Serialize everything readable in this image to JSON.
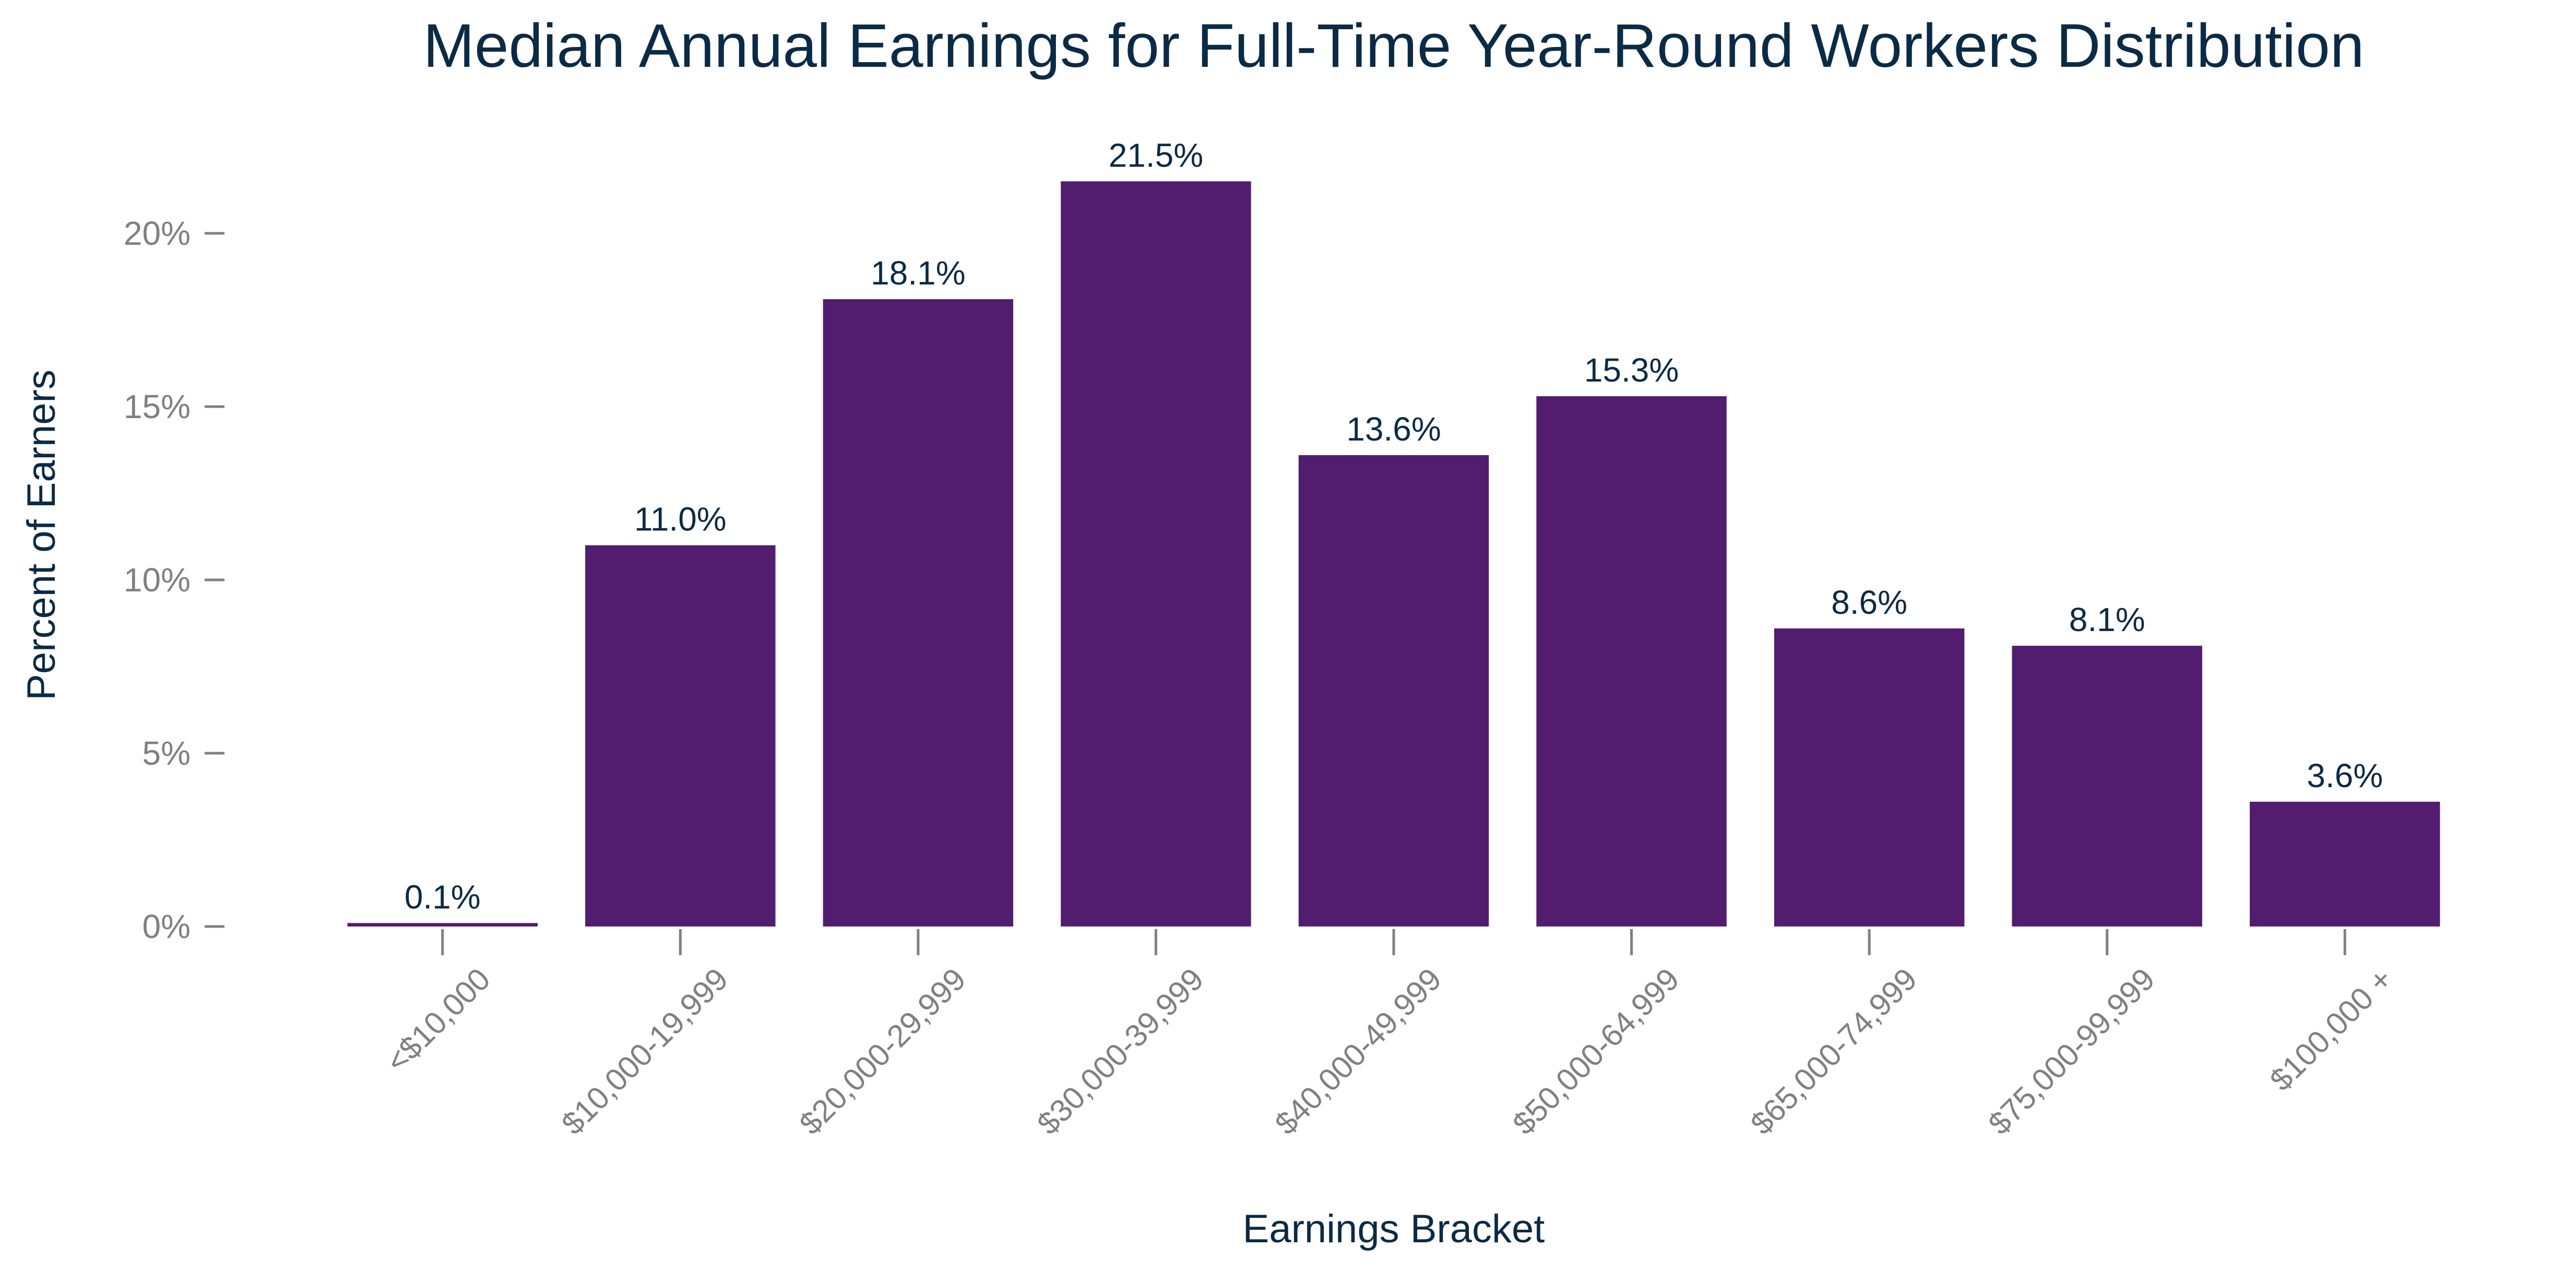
{
  "chart_data": {
    "type": "bar",
    "title": "Median Annual Earnings for Full-Time Year-Round Workers Distribution",
    "xlabel": "Earnings Bracket",
    "ylabel": "Percent of Earners",
    "categories": [
      "<$10,000",
      "$10,000-19,999",
      "$20,000-29,999",
      "$30,000-39,999",
      "$40,000-49,999",
      "$50,000-64,999",
      "$65,000-74,999",
      "$75,000-99,999",
      "$100,000 +"
    ],
    "values": [
      0.1,
      11.0,
      18.1,
      21.5,
      13.6,
      15.3,
      8.6,
      8.1,
      3.6
    ],
    "data_labels": [
      "0.1%",
      "11.0%",
      "18.1%",
      "21.5%",
      "13.6%",
      "15.3%",
      "8.6%",
      "8.1%",
      "3.6%"
    ],
    "y_ticks": [
      0,
      5,
      10,
      15,
      20
    ],
    "y_tick_labels": [
      "0%",
      "5%",
      "10%",
      "15%",
      "20%"
    ],
    "ylim": [
      0,
      22.5
    ],
    "grid": false,
    "legend": "none",
    "bar_color": "#521c6f",
    "text_color": "#0b2a45",
    "tick_color": "#808080"
  }
}
